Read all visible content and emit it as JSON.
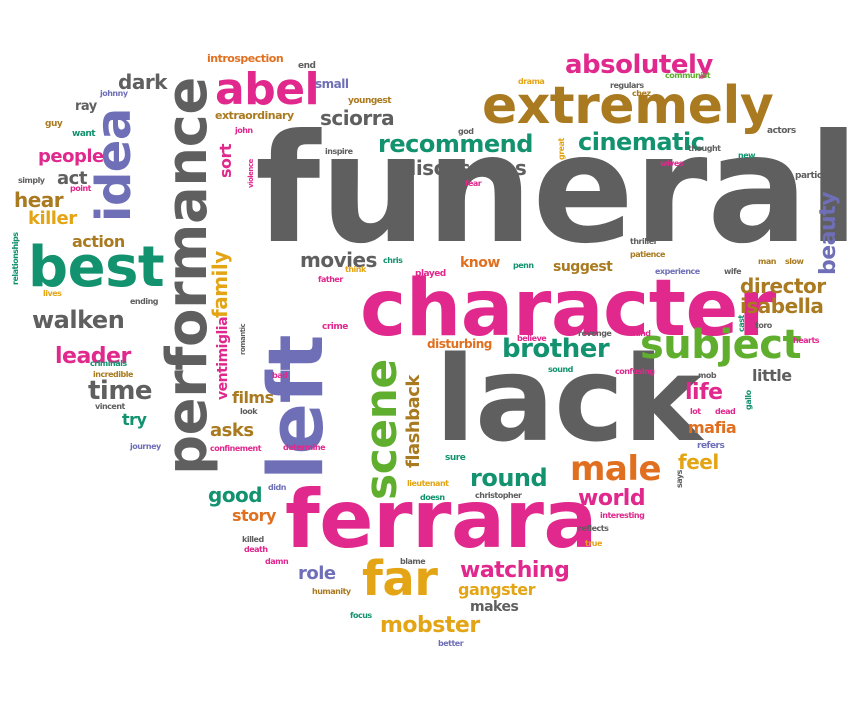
{
  "cloud": {
    "shape": "heart",
    "colors": {
      "gray": "#5f5f5f",
      "pink": "#e0288d",
      "teal": "#12926e",
      "purple": "#6f6fb8",
      "olive": "#a97a1f",
      "gold": "#e3a515",
      "orange": "#e07020",
      "green": "#5fae2e"
    },
    "words": [
      {
        "text": "funeral",
        "color": "gray"
      },
      {
        "text": "lack",
        "color": "gray"
      },
      {
        "text": "character",
        "color": "pink"
      },
      {
        "text": "ferrara",
        "color": "pink"
      },
      {
        "text": "left",
        "color": "purple"
      },
      {
        "text": "performance",
        "color": "gray"
      },
      {
        "text": "extremely",
        "color": "olive"
      },
      {
        "text": "best",
        "color": "teal"
      },
      {
        "text": "abel",
        "color": "pink"
      },
      {
        "text": "idea",
        "color": "purple"
      },
      {
        "text": "absolutely",
        "color": "pink"
      },
      {
        "text": "subject",
        "color": "green"
      },
      {
        "text": "scene",
        "color": "green"
      },
      {
        "text": "far",
        "color": "gold"
      },
      {
        "text": "male",
        "color": "orange"
      },
      {
        "text": "brother",
        "color": "teal"
      },
      {
        "text": "recommend",
        "color": "teal"
      },
      {
        "text": "cinematic",
        "color": "teal"
      },
      {
        "text": "sciorra",
        "color": "gray"
      },
      {
        "text": "discussions",
        "color": "gray"
      },
      {
        "text": "walken",
        "color": "gray"
      },
      {
        "text": "round",
        "color": "teal"
      },
      {
        "text": "watching",
        "color": "pink"
      },
      {
        "text": "mobster",
        "color": "gold"
      },
      {
        "text": "director",
        "color": "olive"
      },
      {
        "text": "isabella",
        "color": "olive"
      },
      {
        "text": "flashback",
        "color": "olive"
      },
      {
        "text": "leader",
        "color": "pink"
      },
      {
        "text": "time",
        "color": "gray"
      },
      {
        "text": "world",
        "color": "pink"
      },
      {
        "text": "life",
        "color": "pink"
      },
      {
        "text": "movies",
        "color": "gray"
      },
      {
        "text": "beauty",
        "color": "purple"
      },
      {
        "text": "dark",
        "color": "gray"
      },
      {
        "text": "people",
        "color": "pink"
      },
      {
        "text": "hear",
        "color": "olive"
      },
      {
        "text": "act",
        "color": "gray"
      },
      {
        "text": "killer",
        "color": "gold"
      },
      {
        "text": "action",
        "color": "olive"
      },
      {
        "text": "family",
        "color": "gold"
      },
      {
        "text": "sort",
        "color": "pink"
      },
      {
        "text": "ventimiglia",
        "color": "pink"
      },
      {
        "text": "films",
        "color": "olive"
      },
      {
        "text": "asks",
        "color": "olive"
      },
      {
        "text": "good",
        "color": "teal"
      },
      {
        "text": "story",
        "color": "orange"
      },
      {
        "text": "role",
        "color": "purple"
      },
      {
        "text": "gangster",
        "color": "gold"
      },
      {
        "text": "makes",
        "color": "gray"
      },
      {
        "text": "feel",
        "color": "gold"
      },
      {
        "text": "mafia",
        "color": "orange"
      },
      {
        "text": "little",
        "color": "gray"
      },
      {
        "text": "try",
        "color": "teal"
      },
      {
        "text": "know",
        "color": "orange"
      },
      {
        "text": "suggest",
        "color": "olive"
      },
      {
        "text": "disturbing",
        "color": "orange"
      },
      {
        "text": "introspection",
        "color": "orange"
      },
      {
        "text": "extraordinary",
        "color": "olive"
      },
      {
        "text": "small",
        "color": "purple"
      },
      {
        "text": "youngest",
        "color": "olive"
      },
      {
        "text": "ray",
        "color": "gray"
      },
      {
        "text": "johnny",
        "color": "purple"
      },
      {
        "text": "guy",
        "color": "olive"
      },
      {
        "text": "want",
        "color": "teal"
      },
      {
        "text": "simply",
        "color": "gray"
      },
      {
        "text": "point",
        "color": "pink"
      },
      {
        "text": "relationships",
        "color": "teal"
      },
      {
        "text": "lives",
        "color": "gold"
      },
      {
        "text": "criminals",
        "color": "teal"
      },
      {
        "text": "incredible",
        "color": "olive"
      },
      {
        "text": "vincent",
        "color": "gray"
      },
      {
        "text": "journey",
        "color": "purple"
      },
      {
        "text": "ending",
        "color": "gray"
      },
      {
        "text": "end",
        "color": "gray"
      },
      {
        "text": "john",
        "color": "pink"
      },
      {
        "text": "inspire",
        "color": "gray"
      },
      {
        "text": "violence",
        "color": "pink"
      },
      {
        "text": "drama",
        "color": "gold"
      },
      {
        "text": "god",
        "color": "gray"
      },
      {
        "text": "great",
        "color": "gold"
      },
      {
        "text": "fear",
        "color": "pink"
      },
      {
        "text": "regulars",
        "color": "gray"
      },
      {
        "text": "chez",
        "color": "olive"
      },
      {
        "text": "communist",
        "color": "green"
      },
      {
        "text": "actors",
        "color": "gray"
      },
      {
        "text": "new",
        "color": "teal"
      },
      {
        "text": "thought",
        "color": "gray"
      },
      {
        "text": "wives",
        "color": "pink"
      },
      {
        "text": "particular",
        "color": "gray"
      },
      {
        "text": "thriller",
        "color": "gray"
      },
      {
        "text": "patience",
        "color": "olive"
      },
      {
        "text": "experience",
        "color": "purple"
      },
      {
        "text": "wife",
        "color": "gray"
      },
      {
        "text": "man",
        "color": "olive"
      },
      {
        "text": "slow",
        "color": "olive"
      },
      {
        "text": "chris",
        "color": "teal"
      },
      {
        "text": "think",
        "color": "gold"
      },
      {
        "text": "father",
        "color": "pink"
      },
      {
        "text": "played",
        "color": "pink"
      },
      {
        "text": "penn",
        "color": "teal"
      },
      {
        "text": "crime",
        "color": "pink"
      },
      {
        "text": "romantic",
        "color": "gray"
      },
      {
        "text": "bad",
        "color": "pink"
      },
      {
        "text": "look",
        "color": "gray"
      },
      {
        "text": "confinement",
        "color": "pink"
      },
      {
        "text": "determine",
        "color": "pink"
      },
      {
        "text": "believe",
        "color": "pink"
      },
      {
        "text": "revenge",
        "color": "gray"
      },
      {
        "text": "sound",
        "color": "teal"
      },
      {
        "text": "kind",
        "color": "pink"
      },
      {
        "text": "confusing",
        "color": "pink"
      },
      {
        "text": "mob",
        "color": "gray"
      },
      {
        "text": "cast",
        "color": "teal"
      },
      {
        "text": "toro",
        "color": "gray"
      },
      {
        "text": "hearts",
        "color": "pink"
      },
      {
        "text": "gallo",
        "color": "teal"
      },
      {
        "text": "lot",
        "color": "pink"
      },
      {
        "text": "dead",
        "color": "pink"
      },
      {
        "text": "refers",
        "color": "purple"
      },
      {
        "text": "says",
        "color": "gray"
      },
      {
        "text": "sure",
        "color": "teal"
      },
      {
        "text": "lieutenant",
        "color": "gold"
      },
      {
        "text": "doesn",
        "color": "teal"
      },
      {
        "text": "christopher",
        "color": "gray"
      },
      {
        "text": "didn",
        "color": "purple"
      },
      {
        "text": "killed",
        "color": "gray"
      },
      {
        "text": "death",
        "color": "pink"
      },
      {
        "text": "damn",
        "color": "pink"
      },
      {
        "text": "blame",
        "color": "gray"
      },
      {
        "text": "humanity",
        "color": "olive"
      },
      {
        "text": "focus",
        "color": "teal"
      },
      {
        "text": "better",
        "color": "purple"
      },
      {
        "text": "reflects",
        "color": "gray"
      },
      {
        "text": "interesting",
        "color": "pink"
      },
      {
        "text": "true",
        "color": "gold"
      }
    ]
  }
}
